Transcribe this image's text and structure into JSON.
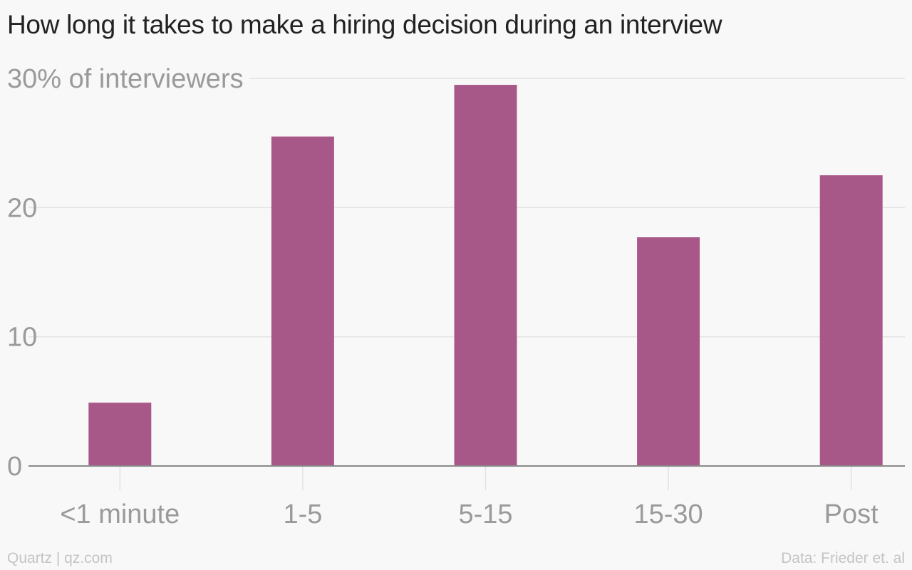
{
  "title": "How long it takes to make a hiring decision during an interview",
  "footer": {
    "credit": "Quartz | qz.com",
    "source": "Data: Frieder et. al"
  },
  "colors": {
    "bar": "#a85888",
    "grid": "#e3e3e3",
    "axis": "#8a8a8a",
    "tick_label": "#9a9a9a"
  },
  "chart_data": {
    "type": "bar",
    "categories": [
      "<1 minute",
      "1-5",
      "5-15",
      "15-30",
      "Post"
    ],
    "values": [
      4.9,
      25.5,
      29.5,
      17.7,
      22.5
    ],
    "ylabel": "",
    "ylim": [
      0,
      30
    ],
    "yticks": [
      0,
      10,
      20,
      30
    ],
    "ytick_labels": [
      "0",
      "10",
      "20",
      "30% of interviewers"
    ],
    "grid": true,
    "legend": "none"
  }
}
